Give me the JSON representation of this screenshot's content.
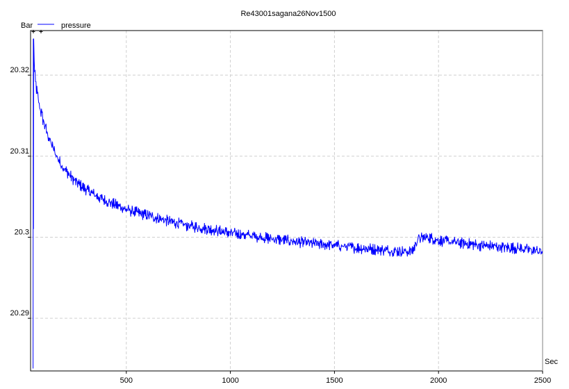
{
  "chart_data": {
    "type": "line",
    "title": "Re43001sagana26Nov1500",
    "xlabel": "Sec",
    "ylabel": "Bar",
    "xlim": [
      40,
      2500
    ],
    "ylim": [
      20.2835,
      20.3255
    ],
    "xticks": [
      500,
      1000,
      1500,
      2000,
      2500
    ],
    "xtick_labels": [
      "500",
      "1000",
      "1500",
      "2000",
      "2500"
    ],
    "yticks": [
      20.29,
      20.3,
      20.31,
      20.32
    ],
    "ytick_labels": [
      "20.29",
      "20.3",
      "20.31",
      "20.32"
    ],
    "grid": true,
    "legend_position": "top-left",
    "series": [
      {
        "name": "pressure",
        "color": "#0000ff",
        "x": [
          50,
          55,
          58,
          62,
          70,
          80,
          90,
          100,
          120,
          140,
          160,
          180,
          200,
          250,
          300,
          350,
          400,
          450,
          500,
          600,
          700,
          800,
          900,
          1000,
          1100,
          1200,
          1300,
          1400,
          1500,
          1600,
          1700,
          1800,
          1860,
          1880,
          1900,
          1950,
          2000,
          2100,
          2200,
          2300,
          2400,
          2500
        ],
        "y": [
          20.288,
          20.3245,
          20.321,
          20.3195,
          20.318,
          20.3165,
          20.3155,
          20.3145,
          20.3128,
          20.3115,
          20.3103,
          20.3093,
          20.3085,
          20.307,
          20.306,
          20.3052,
          20.3045,
          20.304,
          20.3034,
          20.3027,
          20.302,
          20.3014,
          20.301,
          20.3005,
          20.3002,
          20.2998,
          20.2995,
          20.2992,
          20.299,
          20.2987,
          20.2985,
          20.2983,
          20.2982,
          20.2985,
          20.2998,
          20.3,
          20.2996,
          20.2993,
          20.299,
          20.2988,
          20.2986,
          20.2982
        ]
      }
    ]
  }
}
